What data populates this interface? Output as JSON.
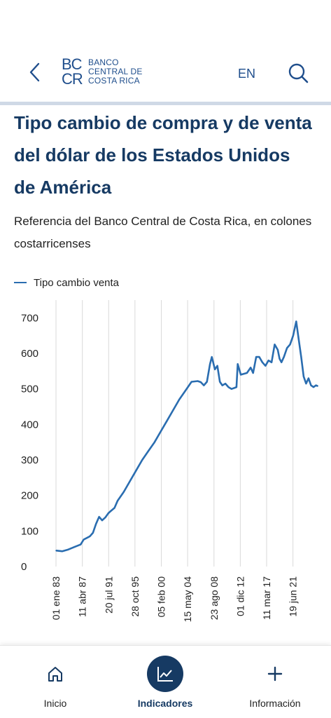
{
  "header": {
    "logo_mark_top": "BC",
    "logo_mark_bottom": "CR",
    "logo_line1": "BANCO",
    "logo_line2": "CENTRAL DE",
    "logo_line3": "COSTA RICA",
    "language": "EN",
    "back_icon": "chevron-left-icon",
    "search_icon": "search-icon",
    "accent_color": "#1f4e8c"
  },
  "page": {
    "title": "Tipo cambio de compra y de venta del dólar de los Estados Unidos de América",
    "subtitle": "Referencia del Banco Central de Costa Rica, en colones costarricenses"
  },
  "chart_data": {
    "type": "line",
    "title": "",
    "xlabel": "",
    "ylabel": "",
    "ylim": [
      0,
      750
    ],
    "yticks": [
      0,
      100,
      200,
      300,
      400,
      500,
      600,
      700
    ],
    "xticks": [
      "01 ene 83",
      "11 abr 87",
      "20 jul 91",
      "28 oct 95",
      "05 feb 00",
      "15 may 04",
      "23 ago 08",
      "01 dic 12",
      "11 mar 17",
      "19 jun 21"
    ],
    "grid": "vertical",
    "legend": "top-left",
    "series": [
      {
        "name": "Tipo cambio venta",
        "color": "#2a6db0",
        "x": [
          1983.0,
          1984.0,
          1985.0,
          1986.0,
          1987.0,
          1987.5,
          1988.5,
          1989.0,
          1989.5,
          1990.0,
          1990.5,
          1991.0,
          1991.5,
          1991.8,
          1992.5,
          1993.0,
          1994.0,
          1995.0,
          1996.0,
          1997.0,
          1998.0,
          1999.0,
          2000.0,
          2001.0,
          2002.0,
          2003.0,
          2004.0,
          2005.0,
          2006.0,
          2006.5,
          2007.0,
          2007.5,
          2008.0,
          2008.3,
          2008.8,
          2009.2,
          2009.6,
          2010.0,
          2010.5,
          2011.0,
          2011.5,
          2012.0,
          2012.3,
          2012.5,
          2013.0,
          2014.0,
          2014.6,
          2015.0,
          2015.5,
          2016.0,
          2016.5,
          2017.0,
          2017.5,
          2018.0,
          2018.5,
          2019.0,
          2019.3,
          2019.6,
          2020.0,
          2020.5,
          2021.0,
          2021.5,
          2022.0,
          2022.4,
          2022.8,
          2023.2,
          2023.6,
          2024.0,
          2024.4,
          2024.8,
          2025.2,
          2025.5
        ],
        "values": [
          45,
          43,
          48,
          55,
          62,
          76,
          85,
          95,
          120,
          140,
          130,
          138,
          150,
          155,
          165,
          185,
          210,
          240,
          270,
          300,
          325,
          350,
          380,
          410,
          440,
          470,
          495,
          520,
          522,
          519,
          510,
          520,
          570,
          590,
          555,
          565,
          520,
          510,
          515,
          505,
          500,
          503,
          505,
          570,
          540,
          545,
          560,
          545,
          590,
          590,
          575,
          565,
          580,
          575,
          625,
          610,
          585,
          575,
          590,
          615,
          625,
          650,
          690,
          640,
          590,
          535,
          515,
          530,
          510,
          505,
          510,
          508
        ]
      }
    ]
  },
  "nav": {
    "items": [
      {
        "label": "Inicio",
        "icon": "home-icon"
      },
      {
        "label": "Indicadores",
        "icon": "chart-icon"
      },
      {
        "label": "Información",
        "icon": "plus-icon"
      }
    ],
    "active_color": "#163a63"
  }
}
